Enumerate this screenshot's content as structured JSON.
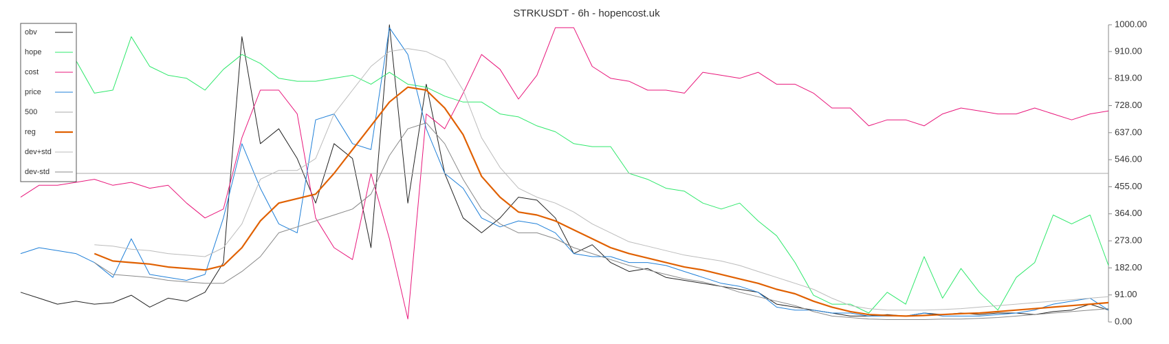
{
  "chart_data": {
    "type": "line",
    "title": "STRKUSDT - 6h - hopencost.uk",
    "ylim": [
      0,
      1000
    ],
    "y_axis_side": "right",
    "yticks": [
      {
        "value": 0,
        "label": "0.00"
      },
      {
        "value": 91,
        "label": "91.00"
      },
      {
        "value": 182,
        "label": "182.00"
      },
      {
        "value": 273,
        "label": "273.00"
      },
      {
        "value": 364,
        "label": "364.00"
      },
      {
        "value": 455,
        "label": "455.00"
      },
      {
        "value": 546,
        "label": "546.00"
      },
      {
        "value": 637,
        "label": "637.00"
      },
      {
        "value": 728,
        "label": "728.00"
      },
      {
        "value": 819,
        "label": "819.00"
      },
      {
        "value": 910,
        "label": "910.00"
      },
      {
        "value": 1000,
        "label": "1000.00"
      }
    ],
    "legend": "upper left",
    "series": [
      {
        "name": "obv",
        "color": "#222222",
        "linewidth": 1,
        "values": [
          100,
          80,
          60,
          70,
          60,
          65,
          90,
          50,
          80,
          70,
          100,
          200,
          960,
          600,
          650,
          550,
          400,
          600,
          550,
          250,
          1000,
          400,
          800,
          500,
          350,
          300,
          350,
          420,
          410,
          350,
          230,
          260,
          200,
          170,
          180,
          150,
          140,
          130,
          120,
          110,
          100,
          60,
          50,
          40,
          30,
          20,
          20,
          25,
          20,
          30,
          25,
          30,
          25,
          30,
          30,
          25,
          35,
          40,
          60,
          40
        ]
      },
      {
        "name": "hope",
        "color": "#2ee86b",
        "linewidth": 1,
        "values": [
          null,
          null,
          null,
          880,
          770,
          780,
          960,
          860,
          830,
          820,
          780,
          850,
          900,
          870,
          820,
          810,
          810,
          820,
          830,
          800,
          840,
          800,
          790,
          760,
          740,
          740,
          700,
          690,
          660,
          640,
          600,
          590,
          590,
          500,
          480,
          450,
          440,
          400,
          380,
          400,
          340,
          290,
          200,
          90,
          60,
          60,
          30,
          100,
          60,
          220,
          80,
          180,
          100,
          40,
          150,
          200,
          360,
          330,
          360,
          190
        ]
      },
      {
        "name": "cost",
        "color": "#e8157a",
        "linewidth": 1,
        "values": [
          420,
          460,
          460,
          470,
          480,
          460,
          470,
          450,
          460,
          400,
          350,
          380,
          620,
          780,
          780,
          700,
          350,
          250,
          210,
          500,
          280,
          10,
          700,
          650,
          770,
          900,
          850,
          750,
          830,
          990,
          990,
          860,
          820,
          810,
          780,
          780,
          770,
          840,
          830,
          820,
          840,
          800,
          800,
          770,
          720,
          720,
          660,
          680,
          680,
          660,
          700,
          720,
          710,
          700,
          700,
          720,
          700,
          680,
          700,
          710
        ]
      },
      {
        "name": "price",
        "color": "#1e7fd8",
        "linewidth": 1,
        "values": [
          230,
          250,
          240,
          230,
          200,
          150,
          280,
          160,
          150,
          140,
          160,
          350,
          600,
          450,
          330,
          300,
          680,
          700,
          600,
          580,
          990,
          900,
          650,
          500,
          450,
          350,
          320,
          340,
          330,
          300,
          230,
          220,
          220,
          200,
          200,
          190,
          170,
          150,
          130,
          120,
          100,
          50,
          40,
          40,
          30,
          30,
          20,
          20,
          20,
          30,
          20,
          20,
          20,
          25,
          30,
          40,
          60,
          70,
          80,
          40
        ]
      },
      {
        "name": "500",
        "color": "#aaaaaa",
        "linewidth": 1,
        "values": [
          500,
          500,
          500,
          500,
          500,
          500,
          500,
          500,
          500,
          500,
          500,
          500,
          500,
          500,
          500,
          500,
          500,
          500,
          500,
          500,
          500,
          500,
          500,
          500,
          500,
          500,
          500,
          500,
          500,
          500,
          500,
          500,
          500,
          500,
          500,
          500,
          500,
          500,
          500,
          500,
          500,
          500,
          500,
          500,
          500,
          500,
          500,
          500,
          500,
          500,
          500,
          500,
          500,
          500,
          500,
          500,
          500,
          500,
          500,
          500
        ]
      },
      {
        "name": "reg",
        "color": "#e06000",
        "linewidth": 2.2,
        "values": [
          null,
          null,
          null,
          null,
          230,
          205,
          200,
          195,
          185,
          180,
          175,
          190,
          250,
          340,
          400,
          415,
          430,
          500,
          580,
          660,
          740,
          790,
          780,
          720,
          630,
          490,
          420,
          370,
          360,
          340,
          310,
          280,
          250,
          230,
          215,
          200,
          185,
          175,
          160,
          145,
          130,
          110,
          95,
          70,
          50,
          35,
          25,
          22,
          20,
          22,
          25,
          28,
          30,
          35,
          40,
          45,
          50,
          55,
          60,
          65
        ]
      },
      {
        "name": "dev+std",
        "color": "#bbbbbb",
        "linewidth": 1,
        "values": [
          null,
          null,
          null,
          null,
          260,
          255,
          245,
          240,
          230,
          225,
          220,
          250,
          330,
          480,
          510,
          510,
          550,
          700,
          780,
          860,
          910,
          920,
          910,
          880,
          780,
          620,
          520,
          450,
          420,
          400,
          370,
          330,
          300,
          270,
          255,
          240,
          225,
          215,
          205,
          190,
          170,
          150,
          130,
          110,
          80,
          55,
          45,
          40,
          40,
          40,
          42,
          45,
          50,
          55,
          60,
          65,
          70,
          75,
          80,
          85
        ]
      },
      {
        "name": "dev-std",
        "color": "#888888",
        "linewidth": 1,
        "values": [
          null,
          null,
          null,
          null,
          200,
          160,
          155,
          150,
          140,
          135,
          130,
          130,
          170,
          220,
          300,
          320,
          340,
          360,
          380,
          430,
          560,
          650,
          670,
          600,
          480,
          380,
          330,
          300,
          300,
          280,
          250,
          230,
          210,
          190,
          175,
          160,
          145,
          135,
          120,
          100,
          85,
          70,
          55,
          35,
          20,
          15,
          10,
          8,
          8,
          8,
          10,
          10,
          12,
          15,
          20,
          25,
          30,
          35,
          40,
          45
        ]
      }
    ]
  }
}
